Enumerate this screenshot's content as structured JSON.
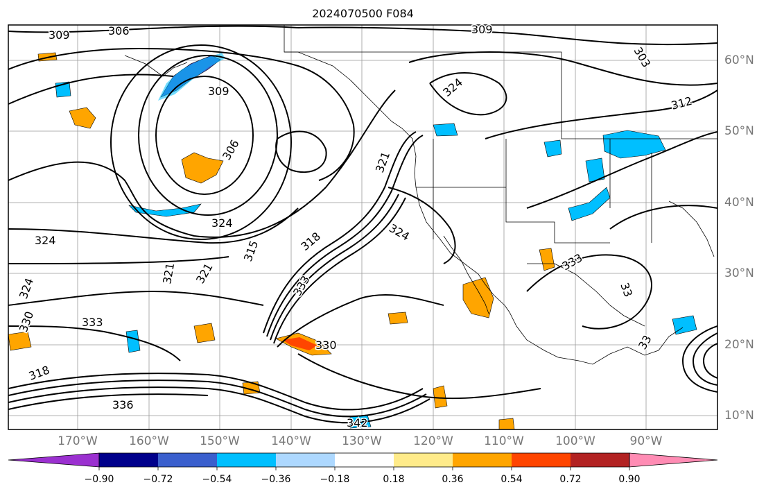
{
  "title": "2024070500 F084",
  "longitude_labels": [
    "170°W",
    "160°W",
    "150°W",
    "140°W",
    "130°W",
    "120°W",
    "110°W",
    "100°W",
    "90°W"
  ],
  "latitude_labels": [
    "60°N",
    "50°N",
    "40°N",
    "30°N",
    "20°N",
    "10°N"
  ],
  "contour_labels": [
    "309",
    "306",
    "309",
    "303",
    "309",
    "324",
    "312",
    "306",
    "321",
    "324",
    "324",
    "315",
    "318",
    "321",
    "321",
    "324",
    "333",
    "333",
    "324",
    "330",
    "318",
    "330",
    "336",
    "342",
    "333",
    "33",
    "33"
  ],
  "colorbar": {
    "ticks": [
      "−0.90",
      "−0.72",
      "−0.54",
      "−0.36",
      "−0.18",
      "0.18",
      "0.36",
      "0.54",
      "0.72",
      "0.90"
    ],
    "colors": [
      "#9b30d0",
      "#00008b",
      "#3a5fcd",
      "#00bfff",
      "#add8ff",
      "#ffffff",
      "#ffeb8a",
      "#ffa500",
      "#ff4500",
      "#b22222",
      "#ff8cb4"
    ]
  }
}
